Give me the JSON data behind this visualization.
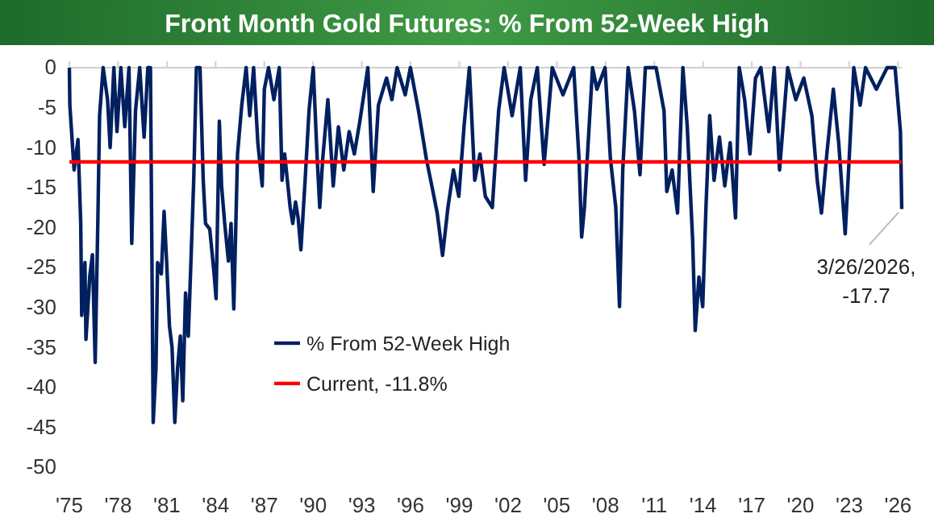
{
  "chart_data": {
    "type": "line",
    "title": "Front Month Gold Futures: % From 52-Week High",
    "xlim": [
      1975,
      2026.23
    ],
    "xticks": [
      {
        "value": 1975,
        "label": "'75"
      },
      {
        "value": 1978,
        "label": "'78"
      },
      {
        "value": 1981,
        "label": "'81"
      },
      {
        "value": 1984,
        "label": "'84"
      },
      {
        "value": 1987,
        "label": "'87"
      },
      {
        "value": 1990,
        "label": "'90"
      },
      {
        "value": 1993,
        "label": "'93"
      },
      {
        "value": 1996,
        "label": "'96"
      },
      {
        "value": 1999,
        "label": "'99"
      },
      {
        "value": 2002,
        "label": "'02"
      },
      {
        "value": 2005,
        "label": "'05"
      },
      {
        "value": 2008,
        "label": "'08"
      },
      {
        "value": 2011,
        "label": "'11"
      },
      {
        "value": 2014,
        "label": "'14"
      },
      {
        "value": 2017,
        "label": "'17"
      },
      {
        "value": 2020,
        "label": "'20"
      },
      {
        "value": 2023,
        "label": "'23"
      },
      {
        "value": 2026,
        "label": "'26"
      }
    ],
    "ylim": [
      -50,
      0
    ],
    "yticks": [
      0,
      -5,
      -10,
      -15,
      -20,
      -25,
      -30,
      -35,
      -40,
      -45,
      -50
    ],
    "grid": false,
    "legend": "bottom left",
    "line_style": "solid",
    "series": [
      {
        "name": "% From 52-Week High",
        "color": "#002060",
        "x": [
          1975.0,
          1975.03,
          1975.29,
          1975.53,
          1975.7,
          1975.76,
          1975.96,
          1976.02,
          1976.26,
          1976.42,
          1976.59,
          1976.75,
          1976.86,
          1977.08,
          1977.35,
          1977.51,
          1977.74,
          1977.93,
          1978.17,
          1978.41,
          1978.67,
          1978.84,
          1979.07,
          1979.33,
          1979.6,
          1979.83,
          1979.99,
          1980.16,
          1980.33,
          1980.43,
          1980.66,
          1980.83,
          1980.99,
          1981.16,
          1981.32,
          1981.49,
          1981.66,
          1981.83,
          1981.98,
          1982.15,
          1982.32,
          1982.48,
          1982.65,
          1982.82,
          1983.04,
          1983.24,
          1983.38,
          1983.64,
          1983.9,
          1984.03,
          1984.23,
          1984.37,
          1984.56,
          1984.79,
          1984.95,
          1985.12,
          1985.35,
          1985.61,
          1985.88,
          1986.1,
          1986.34,
          1986.6,
          1986.87,
          1987.0,
          1987.26,
          1987.59,
          1987.92,
          1988.09,
          1988.25,
          1988.59,
          1988.75,
          1988.92,
          1989.08,
          1989.25,
          1989.51,
          1989.75,
          1990.01,
          1990.24,
          1990.41,
          1990.59,
          1990.91,
          1991.24,
          1991.56,
          1991.89,
          1992.22,
          1992.54,
          1992.88,
          1993.37,
          1993.7,
          1994.02,
          1994.52,
          1994.85,
          1995.17,
          1995.67,
          1995.99,
          1996.49,
          1996.98,
          1997.31,
          1997.64,
          1997.97,
          1998.3,
          1998.64,
          1998.97,
          1999.29,
          1999.62,
          1999.95,
          2000.27,
          2000.6,
          2001.03,
          2001.42,
          2001.76,
          2002.25,
          2002.75,
          2003.08,
          2003.4,
          2003.8,
          2004.22,
          2004.72,
          2005.38,
          2006.04,
          2006.37,
          2006.53,
          2006.7,
          2007.2,
          2007.47,
          2007.97,
          2008.3,
          2008.63,
          2008.86,
          2009.06,
          2009.39,
          2009.78,
          2010.12,
          2010.45,
          2011.11,
          2011.6,
          2011.77,
          2012.1,
          2012.43,
          2012.76,
          2013.03,
          2013.36,
          2013.52,
          2013.75,
          2013.98,
          2014.18,
          2014.41,
          2014.68,
          2015.01,
          2015.34,
          2015.67,
          2016.0,
          2016.23,
          2016.56,
          2016.89,
          2017.23,
          2017.56,
          2018.05,
          2018.38,
          2018.71,
          2019.21,
          2019.71,
          2020.2,
          2020.7,
          2021.03,
          2021.29,
          2021.62,
          2022.02,
          2022.35,
          2022.75,
          2023.01,
          2023.28,
          2023.67,
          2024.0,
          2024.67,
          2025.33,
          2025.82,
          2026.15,
          2026.23
        ],
        "values": [
          0,
          -4.7,
          -12.8,
          -9,
          -19.5,
          -31,
          -24.4,
          -34,
          -26,
          -23.4,
          -36.9,
          -19.5,
          -6,
          0,
          -4,
          -10,
          0,
          -8,
          0,
          -7.4,
          0,
          -22,
          -5.4,
          0,
          -8.7,
          0,
          0,
          -44.4,
          -37.6,
          -24.4,
          -25.8,
          -18,
          -24.4,
          -32.3,
          -35,
          -44.4,
          -37.6,
          -33.6,
          -41.7,
          -28.2,
          -33.6,
          -24.4,
          -14.3,
          0,
          0,
          -14.1,
          -19.5,
          -20.2,
          -25.6,
          -28.9,
          -6.7,
          -14.8,
          -19.5,
          -24.2,
          -19.5,
          -30.2,
          -10.8,
          -4.7,
          0,
          -6,
          0,
          -9.4,
          -14.8,
          -2.7,
          0,
          -4,
          0,
          -14.1,
          -10.8,
          -17.5,
          -19.5,
          -16.8,
          -18.8,
          -22.8,
          -14.1,
          -5.4,
          0,
          -10.8,
          -17.5,
          -11.5,
          -4,
          -14.8,
          -7.4,
          -12.8,
          -8,
          -10.8,
          -6.7,
          0,
          -15.5,
          -4.7,
          -1.3,
          -4,
          0,
          -3.4,
          0,
          -5.4,
          -11.5,
          -14.8,
          -18.2,
          -23.5,
          -17.5,
          -12.8,
          -16.1,
          -7.4,
          0,
          -14.1,
          -10.8,
          -16.1,
          -17.5,
          -5.4,
          0,
          -6,
          0,
          -14.1,
          -4,
          0,
          -12.1,
          0,
          -3.4,
          0,
          -11.5,
          -21.2,
          -17.5,
          0,
          -2.7,
          0,
          -11.4,
          -17.5,
          -29.9,
          -12.8,
          0,
          -5.4,
          -13.4,
          0,
          0,
          -5.4,
          -15.5,
          -12.8,
          -18.2,
          0,
          -7.4,
          -21.5,
          -32.9,
          -26.2,
          -29.9,
          -17.5,
          -6,
          -14.1,
          -8.7,
          -14.8,
          -9.4,
          -18.8,
          0,
          -4,
          -10.8,
          -1.3,
          0,
          -8,
          0,
          -12.8,
          0,
          -4,
          -1.3,
          -6,
          -14.1,
          -18.2,
          -10.8,
          -2.7,
          -9.4,
          -20.8,
          -10.8,
          0,
          -4.7,
          0,
          -2.7,
          0,
          0,
          -8,
          -17.7
        ]
      }
    ],
    "ref_lines": [
      {
        "axis": "y",
        "value": -11.8,
        "label": "Current, -11.8%",
        "color": "#ff0000",
        "line_style": "solid"
      }
    ],
    "annotations": [
      {
        "text": "3/26/2026, -17.7",
        "x": 2026.23,
        "y": -17.7
      }
    ]
  }
}
